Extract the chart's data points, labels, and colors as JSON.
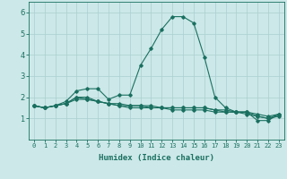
{
  "xlabel": "Humidex (Indice chaleur)",
  "background_color": "#cce8e8",
  "grid_color": "#aacfcf",
  "line_color": "#1a7060",
  "x_values": [
    0,
    1,
    2,
    3,
    4,
    5,
    6,
    7,
    8,
    9,
    10,
    11,
    12,
    13,
    14,
    15,
    16,
    17,
    18,
    19,
    20,
    21,
    22,
    23
  ],
  "series": [
    [
      1.6,
      1.5,
      1.6,
      1.8,
      2.3,
      2.4,
      2.4,
      1.9,
      2.1,
      2.1,
      3.5,
      4.3,
      5.2,
      5.8,
      5.8,
      5.5,
      3.9,
      2.0,
      1.5,
      1.3,
      1.3,
      0.9,
      0.9,
      1.2
    ],
    [
      1.6,
      1.5,
      1.6,
      1.7,
      2.0,
      2.0,
      1.8,
      1.7,
      1.7,
      1.6,
      1.6,
      1.6,
      1.5,
      1.5,
      1.5,
      1.5,
      1.5,
      1.4,
      1.4,
      1.3,
      1.3,
      1.2,
      1.1,
      1.2
    ],
    [
      1.6,
      1.5,
      1.6,
      1.7,
      2.0,
      1.9,
      1.8,
      1.7,
      1.6,
      1.6,
      1.6,
      1.5,
      1.5,
      1.5,
      1.5,
      1.5,
      1.5,
      1.4,
      1.3,
      1.3,
      1.3,
      1.1,
      1.0,
      1.2
    ],
    [
      1.6,
      1.5,
      1.6,
      1.7,
      1.9,
      1.9,
      1.8,
      1.7,
      1.6,
      1.5,
      1.5,
      1.5,
      1.5,
      1.4,
      1.4,
      1.4,
      1.4,
      1.3,
      1.3,
      1.3,
      1.2,
      1.1,
      1.0,
      1.1
    ]
  ],
  "xlim": [
    -0.5,
    23.5
  ],
  "ylim": [
    0.0,
    6.5
  ],
  "yticks": [
    1,
    2,
    3,
    4,
    5,
    6
  ],
  "xticks": [
    0,
    1,
    2,
    3,
    4,
    5,
    6,
    7,
    8,
    9,
    10,
    11,
    12,
    13,
    14,
    15,
    16,
    17,
    18,
    19,
    20,
    21,
    22,
    23
  ],
  "xlabel_fontsize": 6.5,
  "tick_fontsize": 5.0,
  "ytick_fontsize": 6.0
}
